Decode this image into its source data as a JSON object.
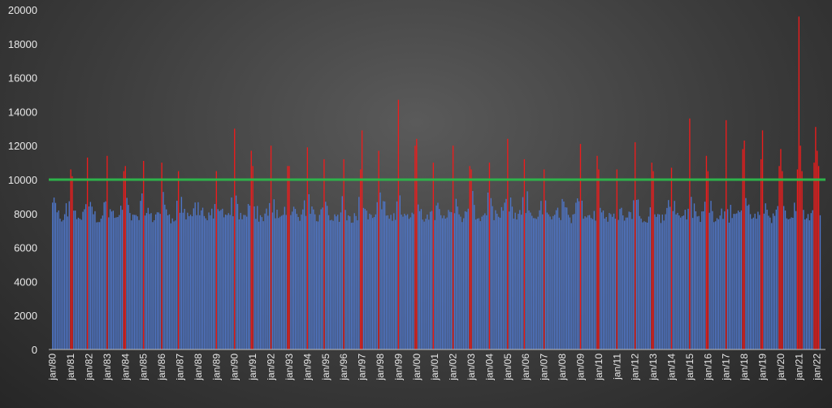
{
  "chart_data": {
    "type": "bar",
    "title": "",
    "xlabel": "",
    "ylabel": "",
    "ylim": [
      0,
      20000
    ],
    "yticks": [
      0,
      2000,
      4000,
      6000,
      8000,
      10000,
      12000,
      14000,
      16000,
      18000,
      20000
    ],
    "x_tick_labels": [
      "jan/80",
      "jan/81",
      "jan/82",
      "jan/83",
      "jan/84",
      "jan/85",
      "jan/86",
      "jan/87",
      "jan/88",
      "jan/89",
      "jan/90",
      "jan/91",
      "jan/92",
      "jan/93",
      "jan/94",
      "jan/95",
      "jan/96",
      "jan/97",
      "jan/98",
      "jan/99",
      "jan/00",
      "jan/01",
      "jan/02",
      "jan/03",
      "jan/04",
      "jan/05",
      "jan/06",
      "jan/07",
      "jan/08",
      "jan/09",
      "jan/10",
      "jan/11",
      "jan/12",
      "jan/13",
      "jan/14",
      "jan/15",
      "jan/16",
      "jan/17",
      "jan/18",
      "jan/19",
      "jan/20",
      "jan/21",
      "jan/22"
    ],
    "threshold": {
      "value": 10000,
      "color": "#2db34a"
    },
    "colors": {
      "below": "#4f76c8",
      "above": "#ee1c1c",
      "axis": "#bfbfbf"
    },
    "grid": false,
    "legend": "none",
    "peaks": [
      {
        "year": "jan/81",
        "values": [
          10600,
          11300,
          10200
        ]
      },
      {
        "year": "jan/83",
        "values": [
          11400,
          10500
        ]
      },
      {
        "year": "jan/84",
        "values": [
          10800
        ]
      },
      {
        "year": "jan/85",
        "values": [
          11100
        ]
      },
      {
        "year": "jan/86",
        "values": [
          11000,
          10500
        ]
      },
      {
        "year": "jan/89",
        "values": [
          10500
        ]
      },
      {
        "year": "jan/90",
        "values": [
          13000,
          11700
        ]
      },
      {
        "year": "jan/91",
        "values": [
          10800
        ]
      },
      {
        "year": "jan/92",
        "values": [
          12000,
          10800
        ]
      },
      {
        "year": "jan/93",
        "values": [
          10800
        ]
      },
      {
        "year": "jan/94",
        "values": [
          11900,
          11200
        ]
      },
      {
        "year": "jan/96",
        "values": [
          11200,
          10600
        ]
      },
      {
        "year": "jan/97",
        "values": [
          12900,
          11700
        ]
      },
      {
        "year": "jan/99",
        "values": [
          14700,
          12000
        ]
      },
      {
        "year": "jan/00",
        "values": [
          12400,
          11000
        ]
      },
      {
        "year": "jan/02",
        "values": [
          12000,
          10800
        ]
      },
      {
        "year": "jan/03",
        "values": [
          10600
        ]
      },
      {
        "year": "jan/04",
        "values": [
          11000
        ]
      },
      {
        "year": "jan/05",
        "values": [
          12400,
          11200
        ]
      },
      {
        "year": "jan/07",
        "values": [
          10600
        ]
      },
      {
        "year": "jan/09",
        "values": [
          12100,
          11400
        ]
      },
      {
        "year": "jan/10",
        "values": [
          10600
        ]
      },
      {
        "year": "jan/11",
        "values": [
          10600
        ]
      },
      {
        "year": "jan/12",
        "values": [
          12200,
          11000
        ]
      },
      {
        "year": "jan/13",
        "values": [
          10500
        ]
      },
      {
        "year": "jan/14",
        "values": [
          10700
        ]
      },
      {
        "year": "jan/15",
        "values": [
          13600,
          11400
        ]
      },
      {
        "year": "jan/16",
        "values": [
          10500
        ]
      },
      {
        "year": "jan/17",
        "values": [
          13500,
          11800
        ]
      },
      {
        "year": "jan/18",
        "values": [
          12300,
          11200
        ]
      },
      {
        "year": "jan/19",
        "values": [
          12900,
          10800
        ]
      },
      {
        "year": "jan/20",
        "values": [
          11800,
          10600,
          10500
        ]
      },
      {
        "year": "jan/21",
        "values": [
          19600,
          13100,
          12000,
          11000,
          10500
        ]
      },
      {
        "year": "jan/22",
        "values": [
          11700,
          11400,
          10800
        ]
      }
    ],
    "typical_range_below_threshold": [
      6700,
      9600
    ]
  }
}
